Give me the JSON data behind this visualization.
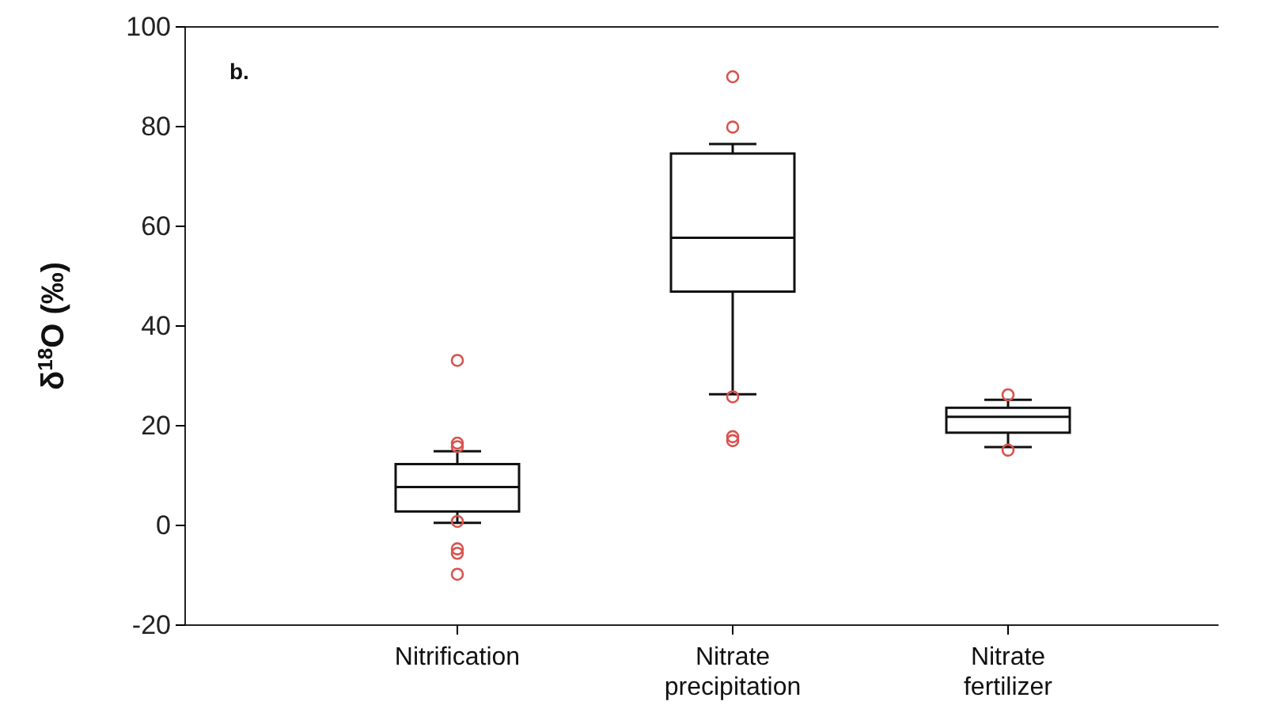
{
  "chart_data": {
    "type": "box",
    "ylabel": "δ$^{18}$O (‰)",
    "annotations": [
      "b."
    ],
    "categories": [
      "Nitrification",
      "Nitrate precipitation",
      "Nitrate fertilizer"
    ],
    "ylim": [
      -20,
      100
    ],
    "yticks": [
      -20,
      0,
      20,
      40,
      60,
      80,
      100
    ],
    "grid": false,
    "boxes": [
      {
        "low": 0.5,
        "q1": 2.8,
        "median": 7.7,
        "q3": 12.3,
        "high": 14.9,
        "outliers": [
          33.1,
          16.5,
          15.8,
          0.8,
          -4.7,
          -5.6,
          -9.8
        ]
      },
      {
        "low": 26.3,
        "q1": 46.9,
        "median": 57.7,
        "q3": 74.6,
        "high": 76.5,
        "outliers": [
          90,
          79.9,
          25.8,
          17.8,
          17
        ]
      },
      {
        "low": 15.7,
        "q1": 18.6,
        "median": 21.8,
        "q3": 23.6,
        "high": 25.2,
        "outliers": [
          26.2,
          15.1
        ]
      }
    ]
  }
}
